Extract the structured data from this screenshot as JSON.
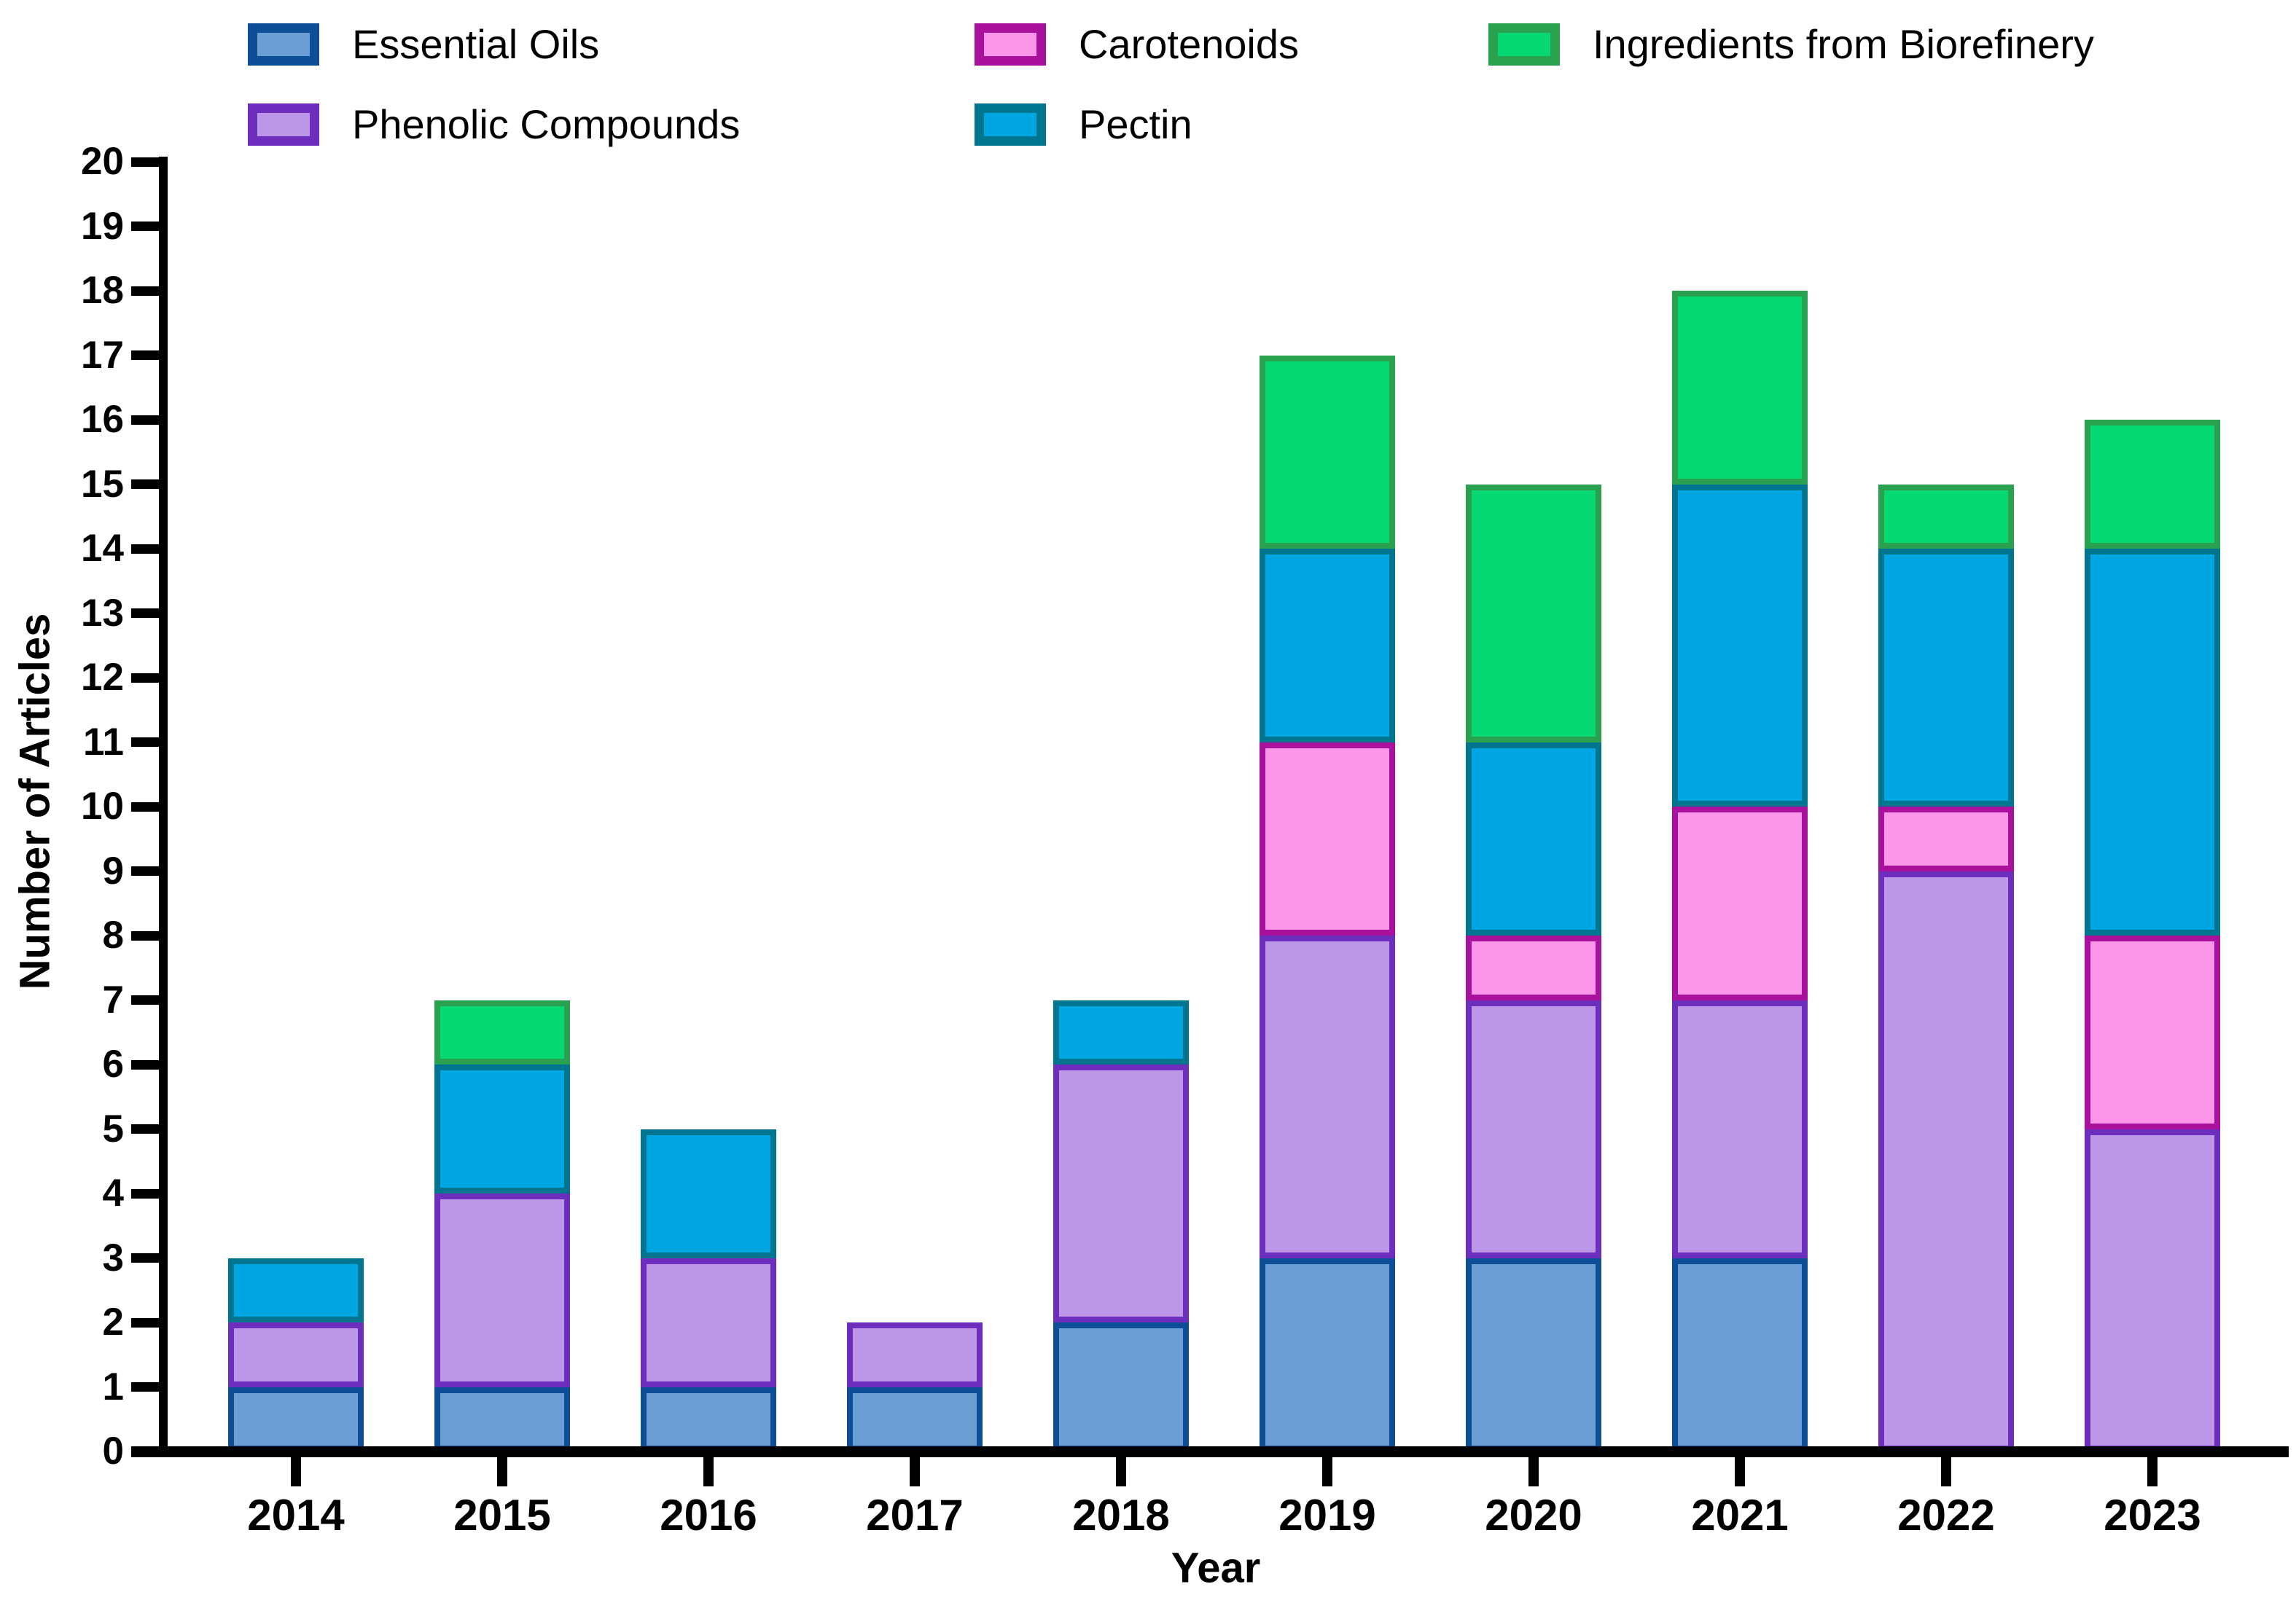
{
  "chart_data": {
    "type": "bar",
    "stacked": true,
    "title": "",
    "xlabel": "Year",
    "ylabel": "Number of Articles",
    "categories": [
      "2014",
      "2015",
      "2016",
      "2017",
      "2018",
      "2019",
      "2020",
      "2021",
      "2022",
      "2023"
    ],
    "series": [
      {
        "name": "Essential Oils",
        "fill": "#6b9ed4",
        "border": "#0d4e96",
        "values": [
          1,
          1,
          1,
          1,
          2,
          3,
          3,
          3,
          0,
          0
        ]
      },
      {
        "name": "Phenolic Compounds",
        "fill": "#bd98e8",
        "border": "#6d2ebd",
        "values": [
          1,
          3,
          2,
          1,
          4,
          5,
          4,
          4,
          9,
          5
        ]
      },
      {
        "name": "Carotenoids",
        "fill": "#fb96e9",
        "border": "#a9109c",
        "values": [
          0,
          0,
          0,
          0,
          0,
          3,
          1,
          3,
          1,
          3
        ]
      },
      {
        "name": "Pectin",
        "fill": "#00a6e2",
        "border": "#007590",
        "values": [
          1,
          2,
          2,
          0,
          1,
          3,
          3,
          5,
          4,
          6
        ]
      },
      {
        "name": "Ingredients from Biorefinery",
        "fill": "#06d973",
        "border": "#2aa14e",
        "values": [
          0,
          1,
          0,
          0,
          0,
          3,
          4,
          3,
          1,
          2
        ]
      }
    ],
    "totals": [
      3,
      7,
      5,
      2,
      7,
      17,
      15,
      18,
      15,
      16
    ],
    "ylim": [
      0,
      20
    ],
    "ytick_step": 1,
    "grid": false,
    "legend_position": "top",
    "axis_color": "#000000",
    "text_color": "#000000"
  }
}
